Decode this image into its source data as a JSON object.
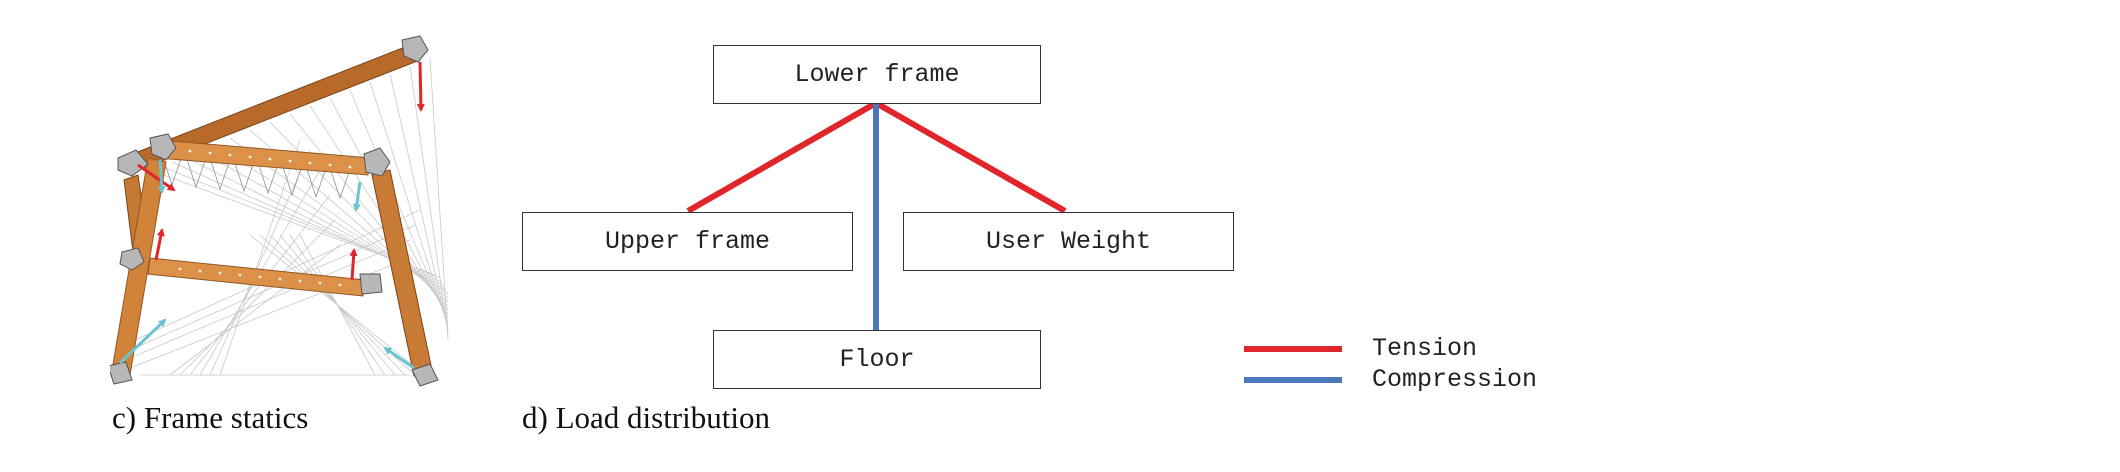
{
  "panel_c": {
    "caption": "c) Frame statics"
  },
  "panel_d": {
    "caption": "d) Load distribution",
    "nodes": {
      "lower_frame": "Lower frame",
      "upper_frame": "Upper frame",
      "user_weight": "User Weight",
      "floor": "Floor"
    },
    "legend": {
      "tension": {
        "label": "Tension",
        "color": "#e0262b"
      },
      "compression": {
        "label": "Compression",
        "color": "#4a78bd"
      }
    }
  }
}
